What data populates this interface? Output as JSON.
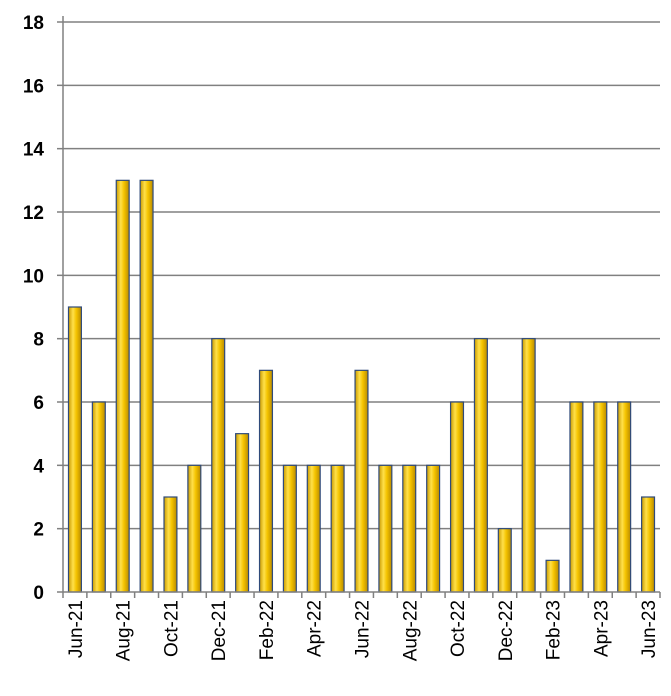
{
  "chart_data": {
    "type": "bar",
    "categories": [
      "Jun-21",
      "Jul-21",
      "Aug-21",
      "Sep-21",
      "Oct-21",
      "Nov-21",
      "Dec-21",
      "Jan-22",
      "Feb-22",
      "Mar-22",
      "Apr-22",
      "May-22",
      "Jun-22",
      "Jul-22",
      "Aug-22",
      "Sep-22",
      "Oct-22",
      "Nov-22",
      "Dec-22",
      "Jan-23",
      "Feb-23",
      "Mar-23",
      "Apr-23",
      "May-23",
      "Jun-23"
    ],
    "x_tick_labels": [
      "Jun-21",
      "Aug-21",
      "Oct-21",
      "Dec-21",
      "Feb-22",
      "Apr-22",
      "Jun-22",
      "Aug-22",
      "Oct-22",
      "Dec-22",
      "Feb-23",
      "Apr-23",
      "Jun-23"
    ],
    "values": [
      9,
      6,
      13,
      13,
      3,
      4,
      8,
      5,
      7,
      4,
      4,
      4,
      7,
      4,
      4,
      4,
      6,
      8,
      2,
      8,
      1,
      6,
      6,
      6,
      3
    ],
    "title": "",
    "xlabel": "",
    "ylabel": "",
    "ylim": [
      0,
      18
    ],
    "yticks": [
      "0",
      "2",
      "4",
      "6",
      "8",
      "10",
      "12",
      "14",
      "16",
      "18"
    ],
    "grid": true,
    "legend": "none",
    "bar_color": "#f5c400",
    "bar_edge_color": "#2f4a7a"
  }
}
